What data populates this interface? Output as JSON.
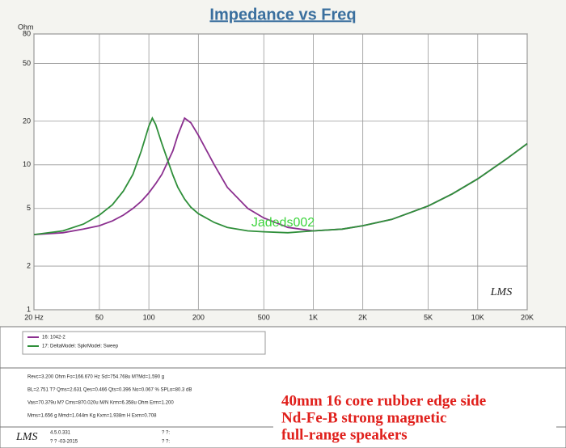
{
  "chart_data": {
    "type": "line",
    "title": "Impedance vs Freq",
    "y_unit": "Ohm",
    "x": [
      20,
      30,
      40,
      50,
      60,
      70,
      80,
      90,
      100,
      105,
      110,
      120,
      140,
      150,
      165,
      180,
      200,
      250,
      300,
      400,
      500,
      700,
      1000,
      1500,
      2000,
      3000,
      5000,
      7000,
      10000,
      15000,
      20000
    ],
    "series": [
      {
        "name": "16: 1042-2",
        "color": "#8b2f8f",
        "values": [
          3.3,
          3.4,
          3.6,
          3.8,
          4.1,
          4.5,
          5.0,
          5.6,
          6.4,
          6.9,
          7.4,
          8.6,
          12.5,
          16,
          21,
          19.5,
          16,
          10,
          7,
          5,
          4.3,
          3.7,
          3.5,
          3.6,
          3.8,
          4.2,
          5.2,
          6.3,
          8,
          11,
          14
        ]
      },
      {
        "name": "17: DeltaModel: SpkrModel: Sweep",
        "color": "#2f8f3a",
        "values": [
          3.3,
          3.5,
          3.9,
          4.5,
          5.3,
          6.6,
          8.6,
          12.5,
          18.5,
          21,
          19,
          14,
          8.5,
          7,
          5.8,
          5.1,
          4.6,
          4,
          3.7,
          3.5,
          3.45,
          3.4,
          3.5,
          3.6,
          3.8,
          4.2,
          5.2,
          6.3,
          8,
          11,
          14
        ]
      }
    ],
    "xscale": "log",
    "yscale": "log",
    "grid": true,
    "xlim": [
      20,
      20000
    ],
    "ylim": [
      1,
      80
    ],
    "xticks": [
      {
        "value": 20,
        "label": "20 Hz"
      },
      50,
      100,
      200,
      500,
      {
        "value": 1000,
        "label": "1K"
      },
      {
        "value": 2000,
        "label": "2K"
      },
      {
        "value": 5000,
        "label": "5K"
      },
      {
        "value": 10000,
        "label": "10K"
      },
      {
        "value": 20000,
        "label": "20K"
      }
    ],
    "yticks": [
      1,
      2,
      5,
      10,
      20,
      50,
      80
    ],
    "watermark": "Jadeds002",
    "logo": "LMS"
  },
  "parameters": [
    "Revc=3.200 Ohm  Fo=166.670 Hz  Sd=754.768u  M?Md=1.590 g",
    "BL=2.751 T?  Qms=2.631  Qes=0.466  Qts=0.396  No=0.067 %  SPLo=80.3 dB",
    "Vas=70.379u M?  Cms=870.020u M/N  Krm=6.358u Ohm  Erm=1.200",
    "Mms=1.656 g  Mmd=1.044m Kg  Kxm=1.938m H  Exm=0.708"
  ],
  "caption": [
    "40mm 16 core rubber edge side",
    "Nd-Fe-B strong magnetic",
    "full-range speakers"
  ],
  "footer": {
    "logo": "LMS",
    "version": "4.5.0.331",
    "date": "? ? -03-2015",
    "field1": "? ?:",
    "field2": "? ?:"
  }
}
